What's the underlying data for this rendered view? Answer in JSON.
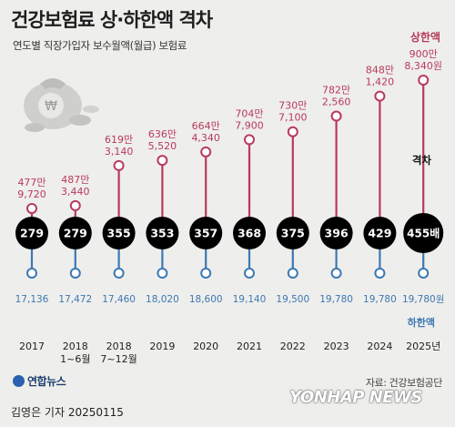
{
  "header": {
    "title": "건강보험료 상·하한액 격차",
    "subtitle": "연도별 직장가입자 보수월액(월급) 보험료"
  },
  "legend": {
    "upper": "상한액",
    "diff": "격차",
    "lower": "하한액"
  },
  "footer": {
    "logo": "연합뉴스",
    "source": "자료: 건강보험공단",
    "credit": "김영은 기자 20250115",
    "watermark": "YONHAP NEWS"
  },
  "colors": {
    "upper": "#b83a5a",
    "lower": "#3d78b3",
    "bubble": "#000000"
  },
  "chart_data": {
    "type": "dumbbell",
    "categories": [
      "2017",
      "2018\n1~6월",
      "2018\n7~12월",
      "2019",
      "2020",
      "2021",
      "2022",
      "2023",
      "2024",
      "2025년"
    ],
    "upper_values": [
      4779720,
      4873440,
      6193140,
      6365520,
      6644340,
      7047900,
      7307100,
      7822560,
      8481420,
      9008340
    ],
    "upper_labels": [
      [
        "477만",
        "9,720"
      ],
      [
        "487만",
        "3,440"
      ],
      [
        "619만",
        "3,140"
      ],
      [
        "636만",
        "5,520"
      ],
      [
        "664만",
        "4,340"
      ],
      [
        "704만",
        "7,900"
      ],
      [
        "730만",
        "7,100"
      ],
      [
        "782만",
        "2,560"
      ],
      [
        "848만",
        "1,420"
      ],
      [
        "900만",
        "8,340원"
      ]
    ],
    "lower_values": [
      17136,
      17472,
      17460,
      18020,
      18600,
      19140,
      19500,
      19780,
      19780,
      19780
    ],
    "lower_labels": [
      "17,136",
      "17,472",
      "17,460",
      "18,020",
      "18,600",
      "19,140",
      "19,500",
      "19,780",
      "19,780",
      "19,780원"
    ],
    "ratio": [
      "279",
      "279",
      "355",
      "353",
      "357",
      "368",
      "375",
      "396",
      "429",
      "455배"
    ]
  }
}
